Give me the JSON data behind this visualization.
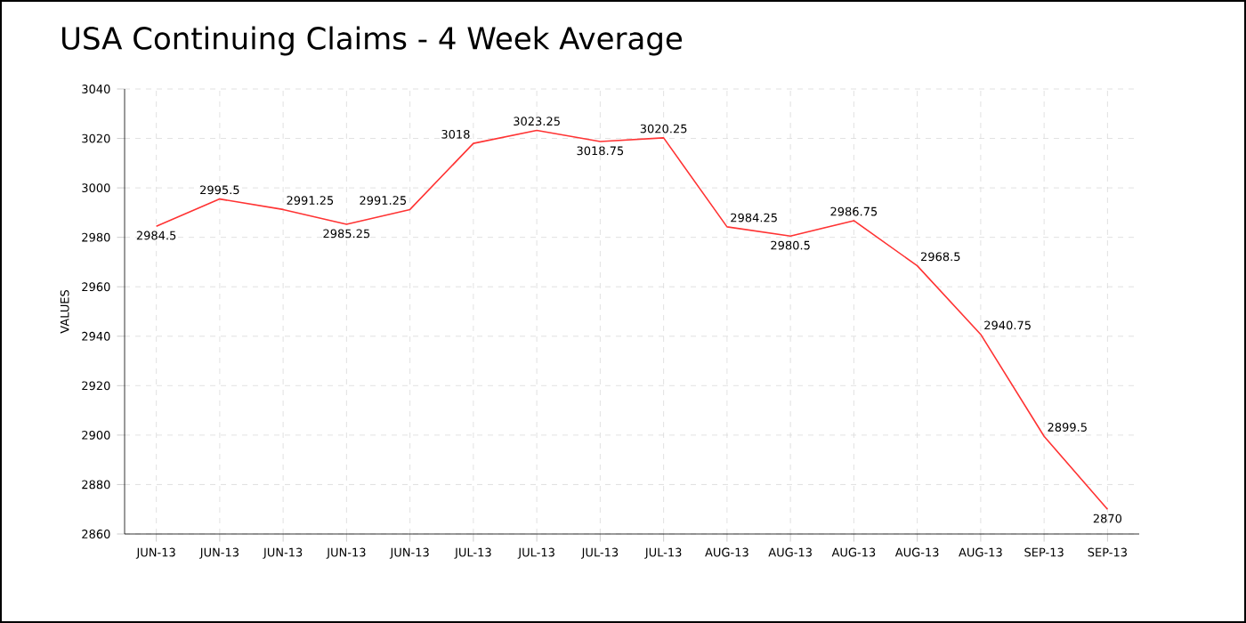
{
  "chart_data": {
    "type": "line",
    "title": "USA Continuing Claims - 4 Week Average",
    "ylabel": "VALUES",
    "categories": [
      "JUN-13",
      "JUN-13",
      "JUN-13",
      "JUN-13",
      "JUN-13",
      "JUL-13",
      "JUL-13",
      "JUL-13",
      "JUL-13",
      "AUG-13",
      "AUG-13",
      "AUG-13",
      "AUG-13",
      "AUG-13",
      "SEP-13",
      "SEP-13"
    ],
    "series": [
      {
        "color": "#ff3333",
        "values": [
          2984.5,
          2995.5,
          2991.25,
          2985.25,
          2991.25,
          3018,
          3023.25,
          3018.75,
          3020.25,
          2984.25,
          2980.5,
          2986.75,
          2968.5,
          2940.75,
          2899.5,
          2870
        ]
      }
    ],
    "ylim": [
      2860,
      3040
    ],
    "yticks": [
      2860,
      2880,
      2900,
      2920,
      2940,
      2960,
      2980,
      3000,
      3020,
      3040
    ],
    "grid": true,
    "data_labels": true,
    "marker": "none",
    "line_style": "solid"
  }
}
